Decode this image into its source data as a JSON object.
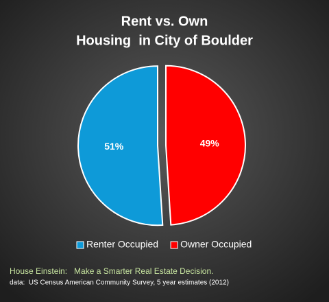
{
  "chart_data": {
    "type": "pie",
    "title": "Rent vs. Own",
    "subtitle": "Housing  in City of Boulder",
    "categories": [
      "Renter Occupied",
      "Owner Occupied"
    ],
    "values": [
      51,
      49
    ],
    "value_labels": [
      "51%",
      "49%"
    ],
    "colors": [
      "#0e9ad8",
      "#ff0000"
    ],
    "legend": "bottom",
    "annotations": [
      "House Einstein:   Make a Smarter Real Estate Decision.",
      "data:  US Census American Community Survey, 5 year estimates (2012)"
    ]
  }
}
